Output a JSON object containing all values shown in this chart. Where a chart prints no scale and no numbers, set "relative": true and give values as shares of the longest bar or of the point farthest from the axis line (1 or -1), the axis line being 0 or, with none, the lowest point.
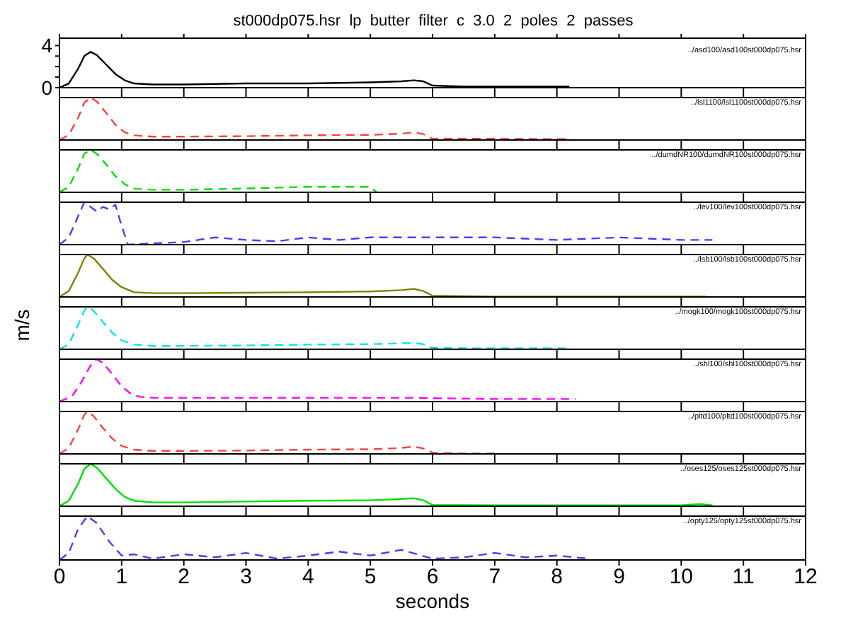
{
  "chart_data": [
    {
      "type": "line",
      "title": "st000dp075.hsr  lp  butter  filter  c  3.0  2  poles  2  passes",
      "annotations": [
        "../asd100/asd100st000dp075.hsr"
      ],
      "xlim": [
        0,
        12
      ],
      "xticks": [
        0,
        1,
        2,
        3,
        4,
        5,
        6,
        7,
        8,
        9,
        10,
        11,
        12
      ],
      "ylim": [
        0,
        4.7
      ],
      "yticks": [
        0,
        {
          "value": 1,
          "label": null
        },
        {
          "value": 2,
          "label": null
        },
        {
          "value": 3,
          "label": null
        },
        4
      ],
      "tick_labels": "y",
      "line_style": "solid",
      "series": [
        {
          "color": "#000000",
          "x": [
            0,
            0.15,
            0.3,
            0.4,
            0.5,
            0.6,
            0.75,
            0.9,
            1.05,
            1.2,
            1.5,
            2,
            3,
            4,
            5,
            5.5,
            5.7,
            5.85,
            6,
            6.5,
            7,
            8,
            8.2
          ],
          "values": [
            0,
            0.4,
            1.8,
            3.0,
            3.4,
            3.1,
            2.2,
            1.3,
            0.7,
            0.4,
            0.3,
            0.3,
            0.4,
            0.4,
            0.5,
            0.6,
            0.7,
            0.6,
            0.2,
            0.1,
            0.1,
            0.1,
            0.1
          ]
        }
      ]
    },
    {
      "type": "line",
      "relative": true,
      "annotations": [
        "../lsl1100/lsl1100st000dp075.hsr"
      ],
      "xlim": [
        0,
        12
      ],
      "xticks": [
        0,
        1,
        2,
        3,
        4,
        5,
        6,
        7,
        8,
        9,
        10,
        11,
        12
      ],
      "tick_labels": false,
      "line_style": "dashed",
      "series": [
        {
          "color": "#ff4040",
          "x": [
            0,
            0.15,
            0.3,
            0.4,
            0.5,
            0.6,
            0.75,
            0.9,
            1.05,
            1.2,
            1.5,
            2,
            3,
            4,
            5,
            5.5,
            5.7,
            5.85,
            6,
            6.5,
            7,
            8,
            8.2
          ],
          "values": [
            0,
            0.12,
            0.52,
            0.88,
            1,
            0.91,
            0.64,
            0.36,
            0.18,
            0.11,
            0.08,
            0.08,
            0.09,
            0.11,
            0.12,
            0.15,
            0.18,
            0.14,
            0.03,
            0.03,
            0.03,
            0.02,
            0.02
          ]
        }
      ]
    },
    {
      "type": "line",
      "relative": true,
      "annotations": [
        "../dumdNR100/dumdNR100st000dp075.hsr"
      ],
      "xlim": [
        0,
        12
      ],
      "xticks": [
        0,
        1,
        2,
        3,
        4,
        5,
        6,
        7,
        8,
        9,
        10,
        11,
        12
      ],
      "tick_labels": false,
      "line_style": "dashed",
      "series": [
        {
          "color": "#00e000",
          "x": [
            0,
            0.15,
            0.3,
            0.4,
            0.5,
            0.6,
            0.75,
            0.9,
            1.05,
            1.2,
            1.5,
            2,
            3,
            4,
            5,
            5.1
          ],
          "values": [
            0,
            0.13,
            0.56,
            0.91,
            1,
            0.91,
            0.66,
            0.38,
            0.19,
            0.09,
            0.06,
            0.06,
            0.09,
            0.13,
            0.13,
            0
          ]
        }
      ]
    },
    {
      "type": "line",
      "relative": true,
      "annotations": [
        "../lev100/lev100st000dp075.hsr"
      ],
      "xlim": [
        0,
        12
      ],
      "xticks": [
        0,
        1,
        2,
        3,
        4,
        5,
        6,
        7,
        8,
        9,
        10,
        11,
        12
      ],
      "tick_labels": false,
      "line_style": "dashed",
      "series": [
        {
          "color": "#4040ff",
          "x": [
            0,
            0.15,
            0.3,
            0.4,
            0.5,
            0.6,
            0.7,
            0.8,
            0.9,
            1.0,
            1.1,
            1.5,
            2,
            2.5,
            3,
            3.5,
            4,
            4.5,
            5,
            6,
            7,
            8,
            9,
            10,
            10.5
          ],
          "values": [
            0,
            0.17,
            0.67,
            1,
            0.89,
            0.78,
            0.89,
            0.83,
            0.94,
            0.44,
            0,
            0.03,
            0.06,
            0.17,
            0.11,
            0.08,
            0.17,
            0.11,
            0.17,
            0.17,
            0.17,
            0.11,
            0.17,
            0.11,
            0.11
          ]
        }
      ]
    },
    {
      "type": "line",
      "relative": true,
      "annotations": [
        "../lsb100/lsb100st000dp075.hsr"
      ],
      "xlim": [
        0,
        12
      ],
      "xticks": [
        0,
        1,
        2,
        3,
        4,
        5,
        6,
        7,
        8,
        9,
        10,
        11,
        12
      ],
      "tick_labels": false,
      "line_style": "solid",
      "series": [
        {
          "color": "#808000",
          "x": [
            0,
            0.15,
            0.3,
            0.4,
            0.45,
            0.55,
            0.7,
            0.85,
            1.0,
            1.2,
            1.5,
            2,
            3,
            4,
            5,
            5.5,
            5.7,
            5.85,
            6,
            7,
            8,
            9,
            10,
            10.4
          ],
          "values": [
            0,
            0.14,
            0.57,
            0.91,
            1,
            0.91,
            0.66,
            0.4,
            0.23,
            0.11,
            0.09,
            0.09,
            0.1,
            0.11,
            0.13,
            0.16,
            0.19,
            0.14,
            0.03,
            0.01,
            0.01,
            0.01,
            0.01,
            0.01
          ]
        }
      ]
    },
    {
      "type": "line",
      "relative": true,
      "ylabel": "m/s",
      "annotations": [
        "../mogk100/mogk100st000dp075.hsr"
      ],
      "xlim": [
        0,
        12
      ],
      "xticks": [
        0,
        1,
        2,
        3,
        4,
        5,
        6,
        7,
        8,
        9,
        10,
        11,
        12
      ],
      "tick_labels": false,
      "line_style": "dashed",
      "series": [
        {
          "color": "#00e8e8",
          "x": [
            0,
            0.15,
            0.3,
            0.4,
            0.45,
            0.55,
            0.7,
            0.85,
            1.0,
            1.2,
            1.5,
            2,
            3,
            4,
            5,
            5.5,
            5.7,
            5.85,
            6,
            7,
            8,
            8.2
          ],
          "values": [
            0,
            0.12,
            0.58,
            0.91,
            1,
            0.91,
            0.64,
            0.39,
            0.21,
            0.11,
            0.08,
            0.08,
            0.09,
            0.11,
            0.12,
            0.14,
            0.15,
            0.12,
            0.03,
            0.02,
            0.02,
            0.02
          ]
        }
      ]
    },
    {
      "type": "line",
      "relative": true,
      "annotations": [
        "../shl100/shl100st000dp075.hsr"
      ],
      "xlim": [
        0,
        12
      ],
      "xticks": [
        0,
        1,
        2,
        3,
        4,
        5,
        6,
        7,
        8,
        9,
        10,
        11,
        12
      ],
      "tick_labels": false,
      "line_style": "dashed",
      "series": [
        {
          "color": "#ff00ff",
          "x": [
            0,
            0.2,
            0.35,
            0.5,
            0.6,
            0.7,
            0.85,
            1.0,
            1.15,
            1.3,
            1.5,
            2,
            3,
            4,
            5,
            5.7,
            6,
            7,
            8,
            8.3
          ],
          "values": [
            0,
            0.12,
            0.45,
            0.85,
            1,
            0.91,
            0.64,
            0.36,
            0.18,
            0.11,
            0.09,
            0.09,
            0.09,
            0.09,
            0.09,
            0.09,
            0.08,
            0.06,
            0.06,
            0.06
          ]
        }
      ]
    },
    {
      "type": "line",
      "relative": true,
      "annotations": [
        "../pltd100/pltd100st000dp075.hsr"
      ],
      "xlim": [
        0,
        12
      ],
      "xticks": [
        0,
        1,
        2,
        3,
        4,
        5,
        6,
        7,
        8,
        9,
        10,
        11,
        12
      ],
      "tick_labels": false,
      "line_style": "dashed",
      "series": [
        {
          "color": "#ff4040",
          "x": [
            0,
            0.15,
            0.3,
            0.4,
            0.45,
            0.55,
            0.7,
            0.85,
            1.0,
            1.2,
            1.5,
            2,
            3,
            4,
            5,
            5.5,
            5.7,
            5.85,
            6,
            6.5,
            7
          ],
          "values": [
            0,
            0.14,
            0.58,
            0.92,
            1,
            0.89,
            0.61,
            0.36,
            0.19,
            0.1,
            0.07,
            0.07,
            0.08,
            0.1,
            0.11,
            0.14,
            0.17,
            0.13,
            0.03,
            0.01,
            0.01
          ]
        }
      ]
    },
    {
      "type": "line",
      "relative": true,
      "annotations": [
        "../oses125/oses125st000dp075.hsr"
      ],
      "xlim": [
        0,
        12
      ],
      "xticks": [
        0,
        1,
        2,
        3,
        4,
        5,
        6,
        7,
        8,
        9,
        10,
        11,
        12
      ],
      "tick_labels": false,
      "line_style": "solid",
      "series": [
        {
          "color": "#00e000",
          "x": [
            0,
            0.15,
            0.3,
            0.4,
            0.5,
            0.6,
            0.75,
            0.9,
            1.05,
            1.2,
            1.5,
            2,
            3,
            4,
            5,
            5.5,
            5.7,
            5.85,
            6,
            7,
            8,
            9,
            10,
            10.3,
            10.5
          ],
          "values": [
            0,
            0.13,
            0.53,
            0.88,
            1,
            0.91,
            0.66,
            0.41,
            0.22,
            0.13,
            0.09,
            0.09,
            0.11,
            0.13,
            0.14,
            0.17,
            0.19,
            0.14,
            0.03,
            0.02,
            0.02,
            0.02,
            0.02,
            0.05,
            0.02
          ]
        }
      ]
    },
    {
      "type": "line",
      "relative": true,
      "xlabel": "seconds",
      "annotations": [
        "../opty125/opty125st000dp075.hsr"
      ],
      "xlim": [
        0,
        12
      ],
      "xticks": [
        0,
        1,
        2,
        3,
        4,
        5,
        6,
        7,
        8,
        9,
        10,
        11,
        12
      ],
      "tick_labels": "x",
      "line_style": "dashed",
      "series": [
        {
          "color": "#4040ff",
          "x": [
            0,
            0.15,
            0.3,
            0.45,
            0.6,
            0.8,
            1,
            1.2,
            1.5,
            2,
            2.5,
            3,
            3.5,
            4,
            4.5,
            5,
            5.5,
            6,
            6.5,
            7,
            7.5,
            8,
            8.5
          ],
          "values": [
            0,
            0.16,
            0.71,
            1,
            0.84,
            0.42,
            0.1,
            0.13,
            0.03,
            0.13,
            0.06,
            0.16,
            0.03,
            0.1,
            0.19,
            0.1,
            0.23,
            0.03,
            0.06,
            0.16,
            0.06,
            0.1,
            0.03
          ]
        }
      ]
    }
  ]
}
